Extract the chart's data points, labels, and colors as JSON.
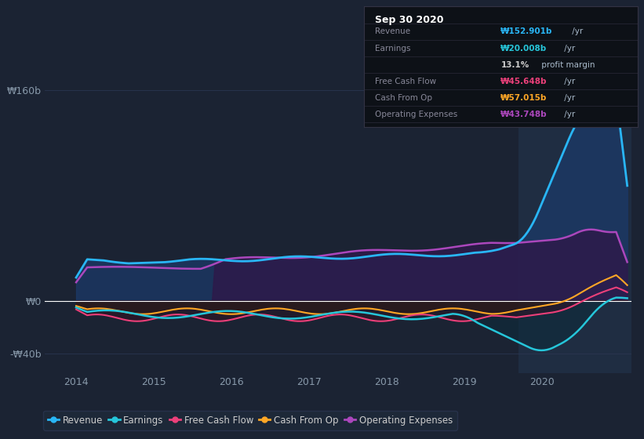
{
  "bg_color": "#1b2333",
  "plot_bg_color": "#1b2333",
  "highlight_bg_color": "#1f2d42",
  "grid_color": "#2a3550",
  "zero_line_color": "#ffffff",
  "series": {
    "Revenue": {
      "color": "#29b6f6",
      "lw": 2.0
    },
    "Earnings": {
      "color": "#26c6da",
      "lw": 1.8
    },
    "Free Cash Flow": {
      "color": "#ec407a",
      "lw": 1.5
    },
    "Cash From Op": {
      "color": "#ffa726",
      "lw": 1.5
    },
    "Operating Expenses": {
      "color": "#ab47bc",
      "lw": 1.8
    }
  },
  "ylim": [
    -55,
    185
  ],
  "yticks": [
    -40,
    0,
    160
  ],
  "ytick_labels": [
    "-₩40b",
    "₩0",
    "₩160b"
  ],
  "xlim": [
    2013.6,
    2021.15
  ],
  "xticks": [
    2014,
    2015,
    2016,
    2017,
    2018,
    2019,
    2020
  ],
  "highlight_start": 2019.7,
  "highlight_end": 2021.15,
  "legend_labels": [
    "Revenue",
    "Earnings",
    "Free Cash Flow",
    "Cash From Op",
    "Operating Expenses"
  ],
  "legend_colors": [
    "#29b6f6",
    "#26c6da",
    "#ec407a",
    "#ffa726",
    "#ab47bc"
  ],
  "tooltip_title": "Sep 30 2020",
  "tooltip_rows": [
    {
      "label": "Revenue",
      "val": "₩152.901b",
      "suffix": " /yr",
      "color": "#29b6f6"
    },
    {
      "label": "Earnings",
      "val": "₩20.008b",
      "suffix": " /yr",
      "color": "#26c6da"
    },
    {
      "label": "",
      "val": "13.1%",
      "suffix": " profit margin",
      "color": "#cccccc"
    },
    {
      "label": "Free Cash Flow",
      "val": "₩45.648b",
      "suffix": " /yr",
      "color": "#ec407a"
    },
    {
      "label": "Cash From Op",
      "val": "₩57.015b",
      "suffix": " /yr",
      "color": "#ffa726"
    },
    {
      "label": "Operating Expenses",
      "val": "₩43.748b",
      "suffix": " /yr",
      "color": "#ab47bc"
    }
  ]
}
